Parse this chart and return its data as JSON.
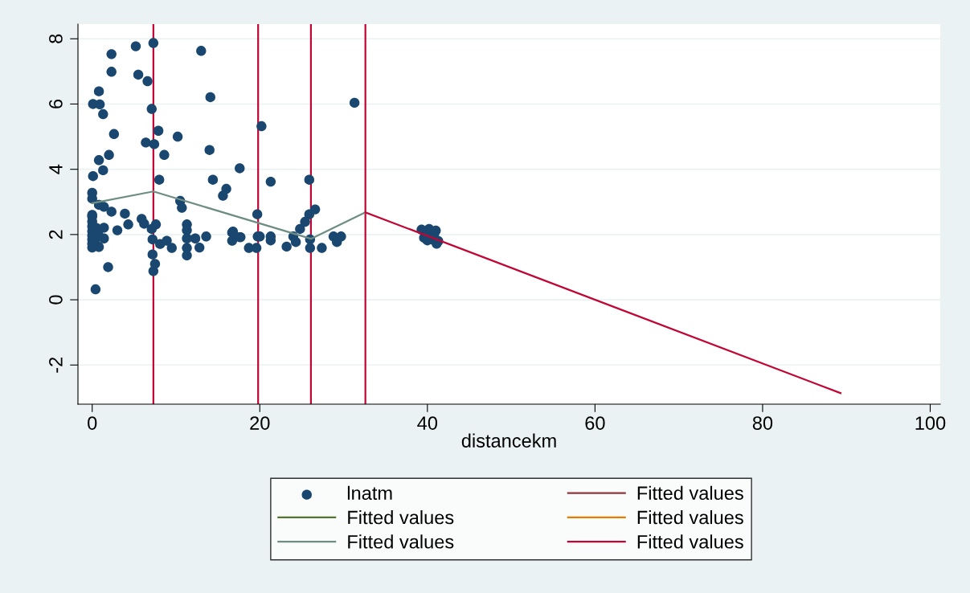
{
  "chart_data": {
    "type": "scatter",
    "xlabel": "distancekm",
    "xlim": [
      -1.7,
      101.2
    ],
    "ylim": [
      -3.2,
      8.45
    ],
    "xticks": [
      0,
      20,
      40,
      60,
      80,
      100
    ],
    "yticks": [
      -2,
      0,
      2,
      4,
      6,
      8
    ],
    "grid": "y",
    "legend": "bottom",
    "series": [
      {
        "name": "lnatm",
        "marker": "circle",
        "color": "#1a476f",
        "x": [
          7.3,
          5.2,
          2.3,
          13.0,
          2.3,
          5.5,
          6.6,
          0.8,
          0.1,
          0.9,
          1.3,
          14.1,
          7.1,
          2.6,
          7.9,
          10.2,
          6.4,
          7.4,
          8.6,
          2.0,
          0.8,
          1.3,
          0.1,
          14.0,
          17.6,
          8.0,
          14.4,
          16.0,
          15.6,
          21.3,
          0,
          0,
          0.8,
          10.5,
          10.7,
          2.3,
          3.9,
          0,
          19.7,
          4.3,
          5.9,
          6.2,
          7.6,
          7.1,
          11.3,
          3.0,
          1.4,
          0,
          0.7,
          0,
          1.4,
          7.2,
          8.1,
          8.9,
          9.5,
          11.3,
          11.3,
          12.3,
          12.8,
          11.3,
          11.3,
          13.6,
          16.7,
          16.7,
          17.7,
          18.7,
          19.6,
          20.0,
          21.3,
          21.3,
          7.2,
          7.5,
          7.3,
          1.9,
          0.4,
          0,
          1.4,
          0.8,
          0,
          0,
          0,
          0,
          0,
          0.5,
          0.5,
          31.3,
          20.2,
          25.9,
          26.6,
          25.9,
          25.4,
          24.8,
          24.0,
          23.2,
          24.3,
          26.0,
          26.0,
          27.4,
          28.8,
          29.7,
          29.2,
          16.8,
          17.6,
          19.75,
          39.3,
          40.2,
          41.0,
          39.6,
          40.5,
          41.3,
          40.8,
          39.8,
          41.1,
          40.0
        ],
        "values": [
          7.87,
          7.77,
          7.53,
          7.63,
          6.99,
          6.9,
          6.7,
          6.39,
          6.0,
          5.99,
          5.69,
          6.21,
          5.85,
          5.08,
          5.18,
          5.0,
          4.82,
          4.77,
          4.44,
          4.44,
          4.28,
          3.97,
          3.79,
          4.59,
          4.03,
          3.68,
          3.68,
          3.4,
          3.19,
          3.62,
          3.28,
          3.1,
          2.91,
          3.03,
          2.82,
          2.7,
          2.64,
          2.6,
          2.62,
          2.31,
          2.48,
          2.33,
          2.31,
          2.17,
          2.31,
          2.13,
          2.21,
          2.1,
          2.04,
          1.97,
          1.88,
          1.85,
          1.71,
          1.81,
          1.59,
          2.13,
          1.88,
          1.88,
          1.6,
          1.59,
          1.36,
          1.94,
          2.06,
          1.81,
          1.92,
          1.59,
          1.59,
          1.94,
          1.94,
          1.82,
          1.39,
          1.1,
          0.88,
          1.0,
          0.32,
          1.6,
          2.85,
          1.62,
          2.4,
          2.25,
          1.85,
          1.72,
          2.55,
          2.2,
          1.9,
          6.04,
          5.32,
          3.68,
          2.77,
          2.62,
          2.39,
          2.17,
          1.94,
          1.63,
          1.77,
          1.85,
          1.59,
          1.59,
          1.94,
          1.94,
          1.77,
          2.09,
          1.92,
          1.94,
          2.15,
          2.17,
          2.12,
          1.9,
          1.85,
          1.8,
          2.0,
          2.05,
          1.72,
          1.82
        ]
      },
      {
        "name": "Fitted values",
        "type": "line",
        "color": "#90353b"
      },
      {
        "name": "Fitted values",
        "type": "line",
        "color": "#55752f"
      },
      {
        "name": "Fitted values",
        "type": "line",
        "color": "#e37e00"
      },
      {
        "name": "Fitted values",
        "type": "line",
        "color": "#6e8e84",
        "x": [
          0,
          7.3,
          26.1,
          32.6
        ],
        "values": [
          2.96,
          3.32,
          1.87,
          2.68
        ]
      },
      {
        "name": "Fitted values",
        "type": "line",
        "color": "#c10534",
        "x": [
          32.6,
          89.3
        ],
        "values": [
          2.68,
          -2.86
        ]
      }
    ],
    "ref_lines": [
      {
        "axis": "x",
        "value": 7.3,
        "color": "#c10534"
      },
      {
        "axis": "x",
        "value": 19.8,
        "color": "#c10534"
      },
      {
        "axis": "x",
        "value": 26.1,
        "color": "#c10534"
      },
      {
        "axis": "x",
        "value": 32.6,
        "color": "#c10534"
      }
    ]
  }
}
